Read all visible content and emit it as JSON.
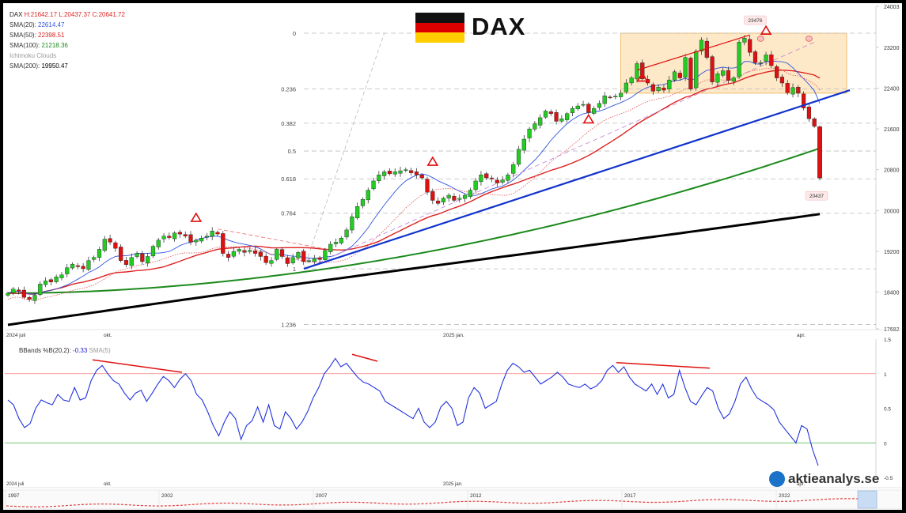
{
  "title": "DAX",
  "legend": {
    "ohlc_label": "DAX",
    "high": "H:21642.17",
    "low": "L:20437.37",
    "close": "C:20641.72",
    "sma20_label": "SMA(20):",
    "sma20_value": "22614.47",
    "sma50_label": "SMA(50):",
    "sma50_value": "22398.51",
    "sma100_label": "SMA(100):",
    "sma100_value": "21218.36",
    "ichimoku_label": "Ichimoku Clouds",
    "sma200_label": "SMA(200):",
    "sma200_value": "19950.47"
  },
  "bbands_legend": {
    "label": "BBands %B(20,2):",
    "value": "-0.33",
    "sma_label": "SMA(5)"
  },
  "logo_text": "aktieanalys.se",
  "colors": {
    "sma20": "#3355dd",
    "sma50": "#dd2222",
    "sma100": "#1c8a1c",
    "sma200": "#000000",
    "up": "#22cc22",
    "down": "#dd1111",
    "trendline": "#1133cc",
    "box_fill": "#fde9c8",
    "box_stroke": "#f0b050"
  },
  "chart_data": [
    {
      "type": "candlestick",
      "title": "DAX",
      "x_tick_labels": [
        "2024 juli",
        "okt.",
        "2025 jan.",
        "apr."
      ],
      "y_tick_labels": [
        "24003",
        "23200",
        "22400",
        "21600",
        "20800",
        "20000",
        "19200",
        "18400",
        "17682"
      ],
      "ylim": [
        17682,
        24003
      ],
      "fib_levels": [
        {
          "label": "0",
          "value": 23476
        },
        {
          "label": "0.236",
          "value": 22386
        },
        {
          "label": "0.382",
          "value": 21712
        },
        {
          "label": "0.5",
          "value": 21167
        },
        {
          "label": "0.618",
          "value": 20622
        },
        {
          "label": "0.764",
          "value": 19948
        },
        {
          "label": "1",
          "value": 18858
        },
        {
          "label": "1.236",
          "value": 17768
        }
      ],
      "annotations": [
        {
          "text": "23476",
          "value": 23476
        },
        {
          "text": "20437",
          "value": 20437
        }
      ],
      "closes": [
        18380,
        18460,
        18420,
        18300,
        18260,
        18340,
        18560,
        18620,
        18600,
        18700,
        18740,
        18880,
        18950,
        18900,
        18860,
        19020,
        19080,
        19240,
        19440,
        19380,
        19260,
        19020,
        18940,
        19080,
        19160,
        19000,
        19100,
        19300,
        19420,
        19500,
        19470,
        19560,
        19540,
        19500,
        19380,
        19420,
        19460,
        19500,
        19600,
        19540,
        19160,
        19080,
        19200,
        19240,
        19180,
        19220,
        19160,
        19100,
        18980,
        19020,
        19240,
        19100,
        18960,
        19080,
        19180,
        19000,
        19020,
        19060,
        19040,
        19220,
        19340,
        19380,
        19460,
        19620,
        19880,
        20080,
        20220,
        20400,
        20580,
        20700,
        20760,
        20720,
        20760,
        20780,
        20800,
        20740,
        20700,
        20640,
        20360,
        20200,
        20140,
        20240,
        20300,
        20200,
        20240,
        20300,
        20400,
        20580,
        20700,
        20640,
        20620,
        20540,
        20600,
        20700,
        20900,
        21200,
        21400,
        21600,
        21700,
        21820,
        21950,
        21900,
        21750,
        21800,
        21900,
        22000,
        22050,
        22080,
        21920,
        22000,
        22100,
        22250,
        22220,
        22240,
        22300,
        22500,
        22600,
        22880,
        22580,
        22500,
        22340,
        22420,
        22360,
        22560,
        22720,
        22600,
        23000,
        22380,
        23120,
        23340,
        23000,
        22520,
        22680,
        22740,
        22550,
        22600,
        23300,
        23380,
        23100,
        22900,
        22900,
        23050,
        22840,
        22600,
        22500,
        22310,
        22410,
        22300,
        22010,
        21800,
        21650,
        20640
      ]
    },
    {
      "type": "line",
      "title": "",
      "x_tick_labels": [
        "2024 juli",
        "okt.",
        "2025 jan.",
        "apr."
      ],
      "y_tick_labels": [
        "1.5",
        "1",
        "0.5",
        "0",
        "-0.5"
      ],
      "ylim": [
        -0.5,
        1.5
      ],
      "series": [
        {
          "name": "BBands %B(20,2)",
          "values": [
            0.62,
            0.55,
            0.35,
            0.22,
            0.28,
            0.5,
            0.62,
            0.58,
            0.55,
            0.7,
            0.62,
            0.6,
            0.8,
            0.62,
            0.65,
            0.9,
            1.05,
            1.12,
            1.0,
            0.9,
            0.85,
            0.72,
            0.62,
            0.72,
            0.76,
            0.6,
            0.72,
            0.85,
            0.96,
            0.9,
            0.8,
            0.92,
            1.0,
            0.9,
            0.7,
            0.62,
            0.45,
            0.25,
            0.1,
            0.3,
            0.45,
            0.35,
            0.05,
            0.25,
            0.32,
            0.52,
            0.3,
            0.55,
            0.25,
            0.2,
            0.45,
            0.35,
            0.2,
            0.3,
            0.45,
            0.65,
            0.8,
            1.0,
            1.1,
            1.22,
            1.1,
            1.15,
            1.05,
            0.95,
            0.88,
            0.85,
            0.8,
            0.75,
            0.6,
            0.55,
            0.5,
            0.45,
            0.4,
            0.35,
            0.5,
            0.3,
            0.22,
            0.3,
            0.52,
            0.6,
            0.5,
            0.25,
            0.3,
            0.65,
            0.8,
            0.72,
            0.5,
            0.55,
            0.6,
            0.85,
            1.05,
            1.15,
            1.1,
            1.02,
            1.05,
            0.95,
            0.85,
            0.9,
            0.95,
            1.02,
            0.95,
            0.85,
            0.82,
            0.8,
            0.85,
            0.78,
            0.82,
            0.9,
            1.05,
            1.12,
            1.02,
            1.1,
            0.95,
            0.85,
            0.8,
            0.75,
            0.85,
            0.7,
            0.85,
            0.65,
            0.7,
            1.05,
            0.8,
            0.6,
            0.55,
            0.68,
            0.8,
            0.75,
            0.5,
            0.35,
            0.42,
            0.6,
            0.85,
            0.95,
            0.78,
            0.65,
            0.6,
            0.55,
            0.48,
            0.3,
            0.2,
            0.1,
            0.0,
            0.25,
            0.2,
            -0.1,
            -0.33
          ]
        }
      ]
    }
  ],
  "navigator_labels": [
    "1997",
    "2002",
    "2007",
    "2012",
    "2017",
    "2022"
  ]
}
